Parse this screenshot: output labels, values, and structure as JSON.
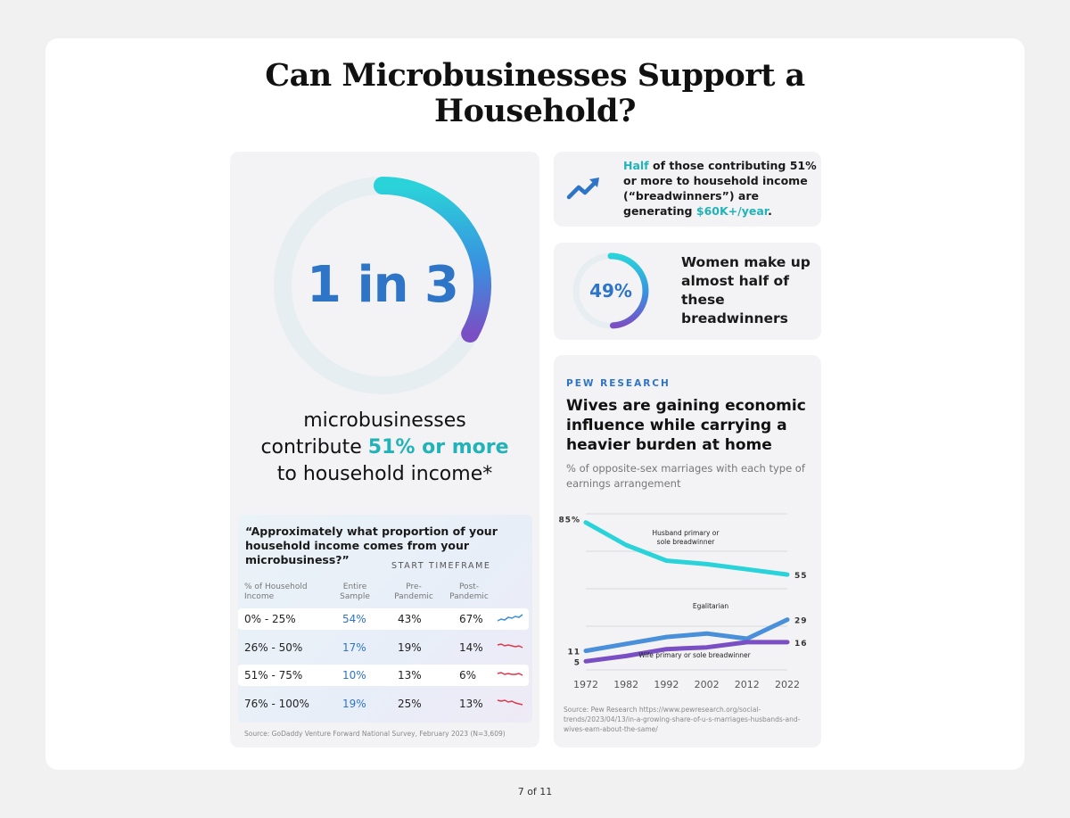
{
  "title_line1": "Can Microbusinesses Support a",
  "title_line2": "Household?",
  "hero": {
    "stat": "1 in 3",
    "ring_fraction": 0.33,
    "caption_line1": "microbusinesses",
    "caption_line2_pre": "contribute ",
    "caption_line2_hl": "51% or more",
    "caption_line3": "to household income*"
  },
  "survey": {
    "question": "“Approximately what proportion of your household income comes from your microbusiness?”",
    "timeframe_label": "START TIMEFRAME",
    "headers": [
      "% of Household Income",
      "Entire Sample",
      "Pre-Pandemic",
      "Post-Pandemic"
    ],
    "rows": [
      {
        "range": "0% - 25%",
        "entire": "54%",
        "pre": "43%",
        "post": "67%",
        "trend": "up"
      },
      {
        "range": "26% - 50%",
        "entire": "17%",
        "pre": "19%",
        "post": "14%",
        "trend": "down"
      },
      {
        "range": "51% - 75%",
        "entire": "10%",
        "pre": "13%",
        "post": "6%",
        "trend": "down"
      },
      {
        "range": "76% - 100%",
        "entire": "19%",
        "pre": "25%",
        "post": "13%",
        "trend": "down"
      }
    ],
    "source": "Source: GoDaddy Venture Forward National Survey, February 2023 (N=3,609)"
  },
  "breadwinners": {
    "hl1": "Half",
    "text1": " of those contributing 51% or more to household income (“breadwinners”) are generating ",
    "hl2": "$60K+/year",
    "text2": "."
  },
  "women": {
    "pct": "49%",
    "ring_fraction": 0.49,
    "text": "Women make up almost half of these breadwinners"
  },
  "pew": {
    "kicker": "PEW RESEARCH",
    "title": "Wives are gaining economic influence while carrying a heavier burden at home",
    "subtitle": "% of opposite-sex marriages with each type of earnings arrangement",
    "source": "Source: Pew Research https://www.pewresearch.org/social-trends/2023/04/13/in-a-growing-share-of-u-s-marriages-husbands-and-wives-earn-about-the-same/"
  },
  "chart_data": {
    "type": "line",
    "title": "Wives are gaining economic influence while carrying a heavier burden at home",
    "subtitle": "% of opposite-sex marriages with each type of earnings arrangement",
    "x": [
      1972,
      1982,
      1992,
      2002,
      2012,
      2022
    ],
    "x_ticks": [
      "1972",
      "1982",
      "1992",
      "2002",
      "2012",
      "2022"
    ],
    "ylim": [
      0,
      90
    ],
    "series": [
      {
        "name": "Husband primary or sole breadwinner",
        "color": "#2ad3d9",
        "values": [
          85,
          72,
          63,
          61,
          58,
          55
        ],
        "start_label": "85%",
        "end_label": "55"
      },
      {
        "name": "Egalitarian",
        "color": "#4a8fd9",
        "values": [
          11,
          15,
          19,
          21,
          18,
          29
        ],
        "start_label": "11",
        "end_label": "29"
      },
      {
        "name": "Wife primary or sole breadwinner",
        "color": "#7a4fc4",
        "values": [
          5,
          8,
          12,
          13,
          16,
          16
        ],
        "start_label": "5",
        "end_label": "16"
      }
    ]
  },
  "footer": "7 of 11",
  "colors": {
    "teal": "#22b3b8",
    "blue": "#2e74c7",
    "purple": "#7a4fc4"
  }
}
